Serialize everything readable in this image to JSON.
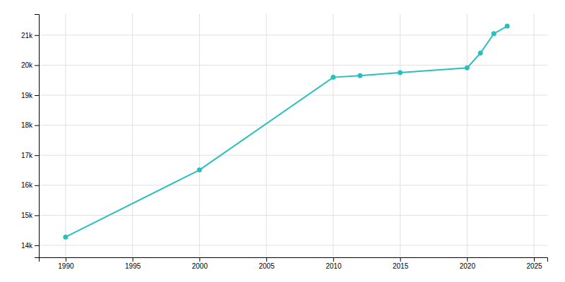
{
  "chart_data": {
    "type": "line",
    "x": [
      1990,
      2000,
      2010,
      2012,
      2015,
      2020,
      2021,
      2022,
      2023
    ],
    "values": [
      14276,
      16510,
      19596,
      19650,
      19750,
      19910,
      20400,
      21050,
      21300
    ],
    "color": "#2abfbf",
    "marker": "circle",
    "xlim": [
      1988,
      2026
    ],
    "ylim": [
      13600,
      21700
    ],
    "xticks": [
      1990,
      1995,
      2000,
      2005,
      2010,
      2015,
      2020,
      2025
    ],
    "yticks": [
      {
        "value": 14000,
        "label": "14k"
      },
      {
        "value": 15000,
        "label": "15k"
      },
      {
        "value": 16000,
        "label": "16k"
      },
      {
        "value": 17000,
        "label": "17k"
      },
      {
        "value": 18000,
        "label": "18k"
      },
      {
        "value": 19000,
        "label": "19k"
      },
      {
        "value": 20000,
        "label": "20k"
      },
      {
        "value": 21000,
        "label": "21k"
      }
    ],
    "grid": true
  }
}
